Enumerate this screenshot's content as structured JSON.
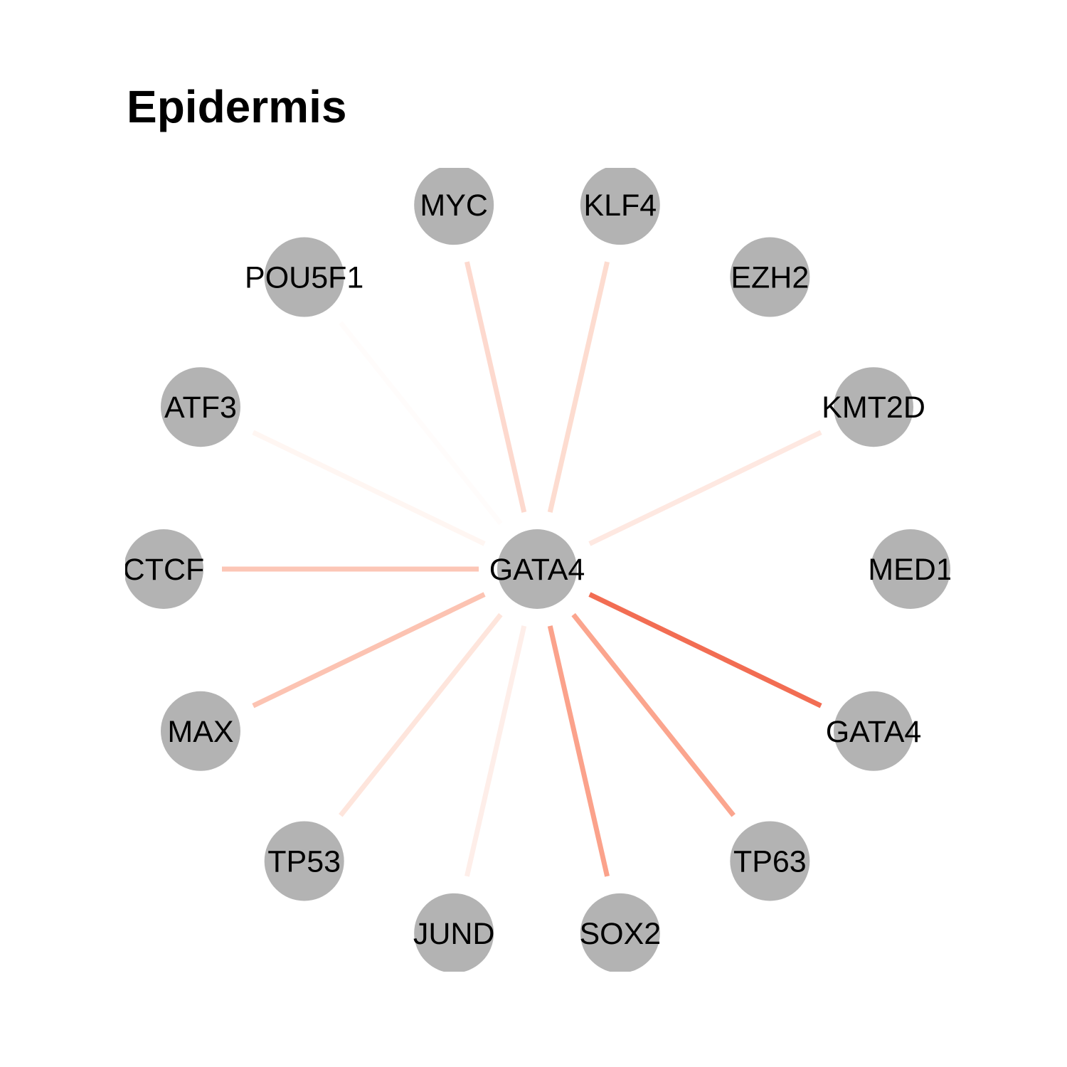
{
  "title": "Epidermis",
  "node_color": "#b3b3b3",
  "center": {
    "label": "GATA4"
  },
  "nodes": [
    {
      "id": "myc",
      "label": "MYC",
      "edge_color": "#fdd9ce"
    },
    {
      "id": "klf4",
      "label": "KLF4",
      "edge_color": "#fddcd0"
    },
    {
      "id": "ezh2",
      "label": "EZH2",
      "edge_color": null
    },
    {
      "id": "kmt2d",
      "label": "KMT2D",
      "edge_color": "#fee8e1"
    },
    {
      "id": "med1",
      "label": "MED1",
      "edge_color": null
    },
    {
      "id": "gata4-target",
      "label": "GATA4",
      "edge_color": "#f26d53"
    },
    {
      "id": "tp63",
      "label": "TP63",
      "edge_color": "#fba58e"
    },
    {
      "id": "sox2",
      "label": "SOX2",
      "edge_color": "#fba28b"
    },
    {
      "id": "jund",
      "label": "JUND",
      "edge_color": "#feeee9"
    },
    {
      "id": "tp53",
      "label": "TP53",
      "edge_color": "#fee5dc"
    },
    {
      "id": "max",
      "label": "MAX",
      "edge_color": "#fcc3b2"
    },
    {
      "id": "ctcf",
      "label": "CTCF",
      "edge_color": "#fcc6b6"
    },
    {
      "id": "atf3",
      "label": "ATF3",
      "edge_color": "#fff6f2"
    },
    {
      "id": "pou5f1",
      "label": "POU5F1",
      "edge_color": "#fffcfb"
    }
  ]
}
